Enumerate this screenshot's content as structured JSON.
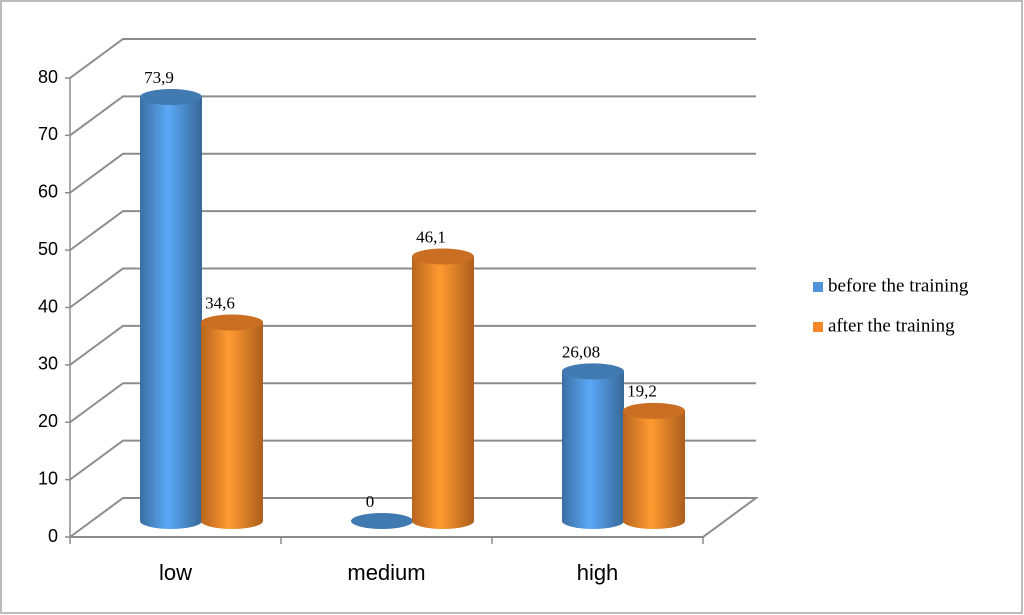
{
  "chart_data": {
    "type": "bar3d",
    "categories": [
      "low",
      "medium",
      "high"
    ],
    "series": [
      {
        "name": "before the training",
        "color": "#4f93d8",
        "values": [
          73.9,
          0,
          26.08
        ],
        "value_labels": [
          "73,9",
          "0",
          "26,08"
        ]
      },
      {
        "name": "after the training",
        "color": "#f5862a",
        "values": [
          34.6,
          46.1,
          19.2
        ],
        "value_labels": [
          "34,6",
          "46,1",
          "19,2"
        ]
      }
    ],
    "ylim": [
      0,
      80
    ],
    "yticks": [
      0,
      10,
      20,
      30,
      40,
      50,
      60,
      70,
      80
    ],
    "grid": true,
    "legend": "right"
  }
}
